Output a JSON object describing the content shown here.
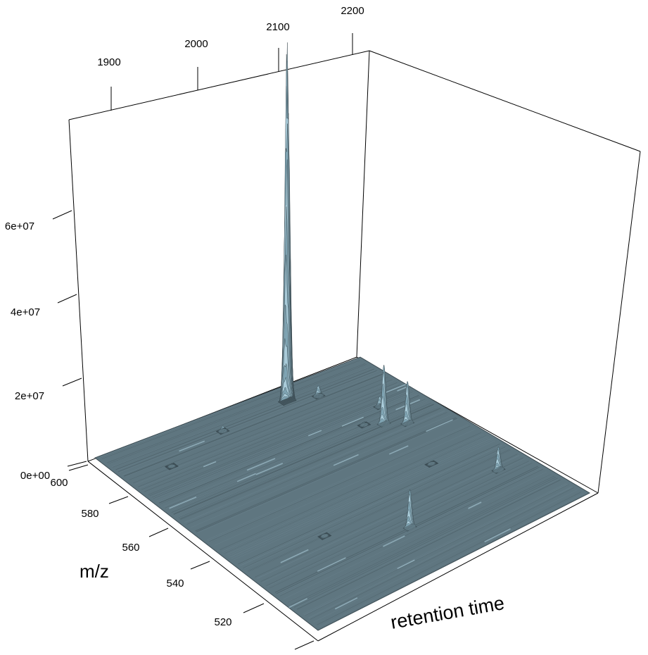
{
  "chart_data": {
    "type": "surface",
    "xlabel": "retention time",
    "ylabel": "m/z",
    "zlabel": "",
    "x_ticks": [
      "1900",
      "2000",
      "2100",
      "2200"
    ],
    "y_ticks": [
      "600",
      "580",
      "560",
      "540",
      "520"
    ],
    "z_ticks": [
      "0e+00",
      "2e+07",
      "4e+07",
      "6e+07"
    ],
    "xlim": [
      1850,
      2220
    ],
    "ylim": [
      505,
      605
    ],
    "zlim": [
      0,
      80000000
    ],
    "surface_color": "#5f7680",
    "peak_color": "#a9cbd9",
    "peaks": [
      {
        "rt": 2000,
        "mz": 596,
        "intensity": 1200000
      },
      {
        "rt": 2130,
        "mz": 575,
        "intensity": 800000
      },
      {
        "rt": 2135,
        "mz": 547,
        "intensity": 600000
      },
      {
        "rt": 1960,
        "mz": 538,
        "intensity": 500000
      },
      {
        "rt": 1910,
        "mz": 590,
        "intensity": 500000
      },
      {
        "rt": 2096,
        "mz": 598,
        "intensity": 82000000
      },
      {
        "rt": 2130,
        "mz": 595,
        "intensity": 2500000
      },
      {
        "rt": 2148,
        "mz": 572,
        "intensity": 14000000
      },
      {
        "rt": 2168,
        "mz": 568,
        "intensity": 10000000
      },
      {
        "rt": 2168,
        "mz": 580,
        "intensity": 2500000
      },
      {
        "rt": 2040,
        "mz": 526,
        "intensity": 9000000
      },
      {
        "rt": 2180,
        "mz": 532,
        "intensity": 5500000
      }
    ]
  }
}
